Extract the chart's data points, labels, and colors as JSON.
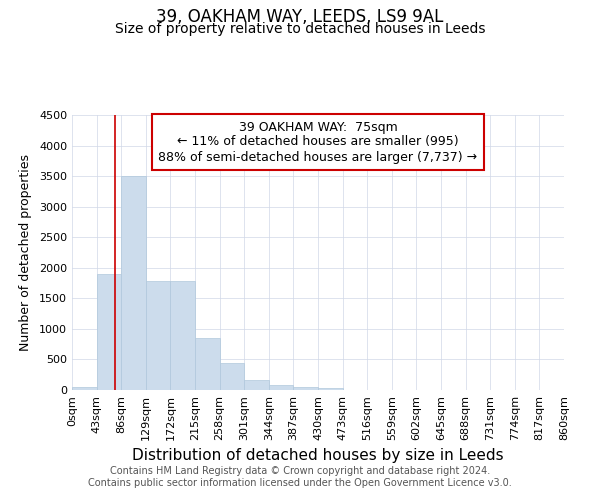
{
  "title": "39, OAKHAM WAY, LEEDS, LS9 9AL",
  "subtitle": "Size of property relative to detached houses in Leeds",
  "xlabel": "Distribution of detached houses by size in Leeds",
  "ylabel": "Number of detached properties",
  "bin_edges": [
    0,
    43,
    86,
    129,
    172,
    215,
    258,
    301,
    344,
    387,
    430,
    473,
    516,
    559,
    602,
    645,
    688,
    731,
    774,
    817,
    860
  ],
  "bin_labels": [
    "0sqm",
    "43sqm",
    "86sqm",
    "129sqm",
    "172sqm",
    "215sqm",
    "258sqm",
    "301sqm",
    "344sqm",
    "387sqm",
    "430sqm",
    "473sqm",
    "516sqm",
    "559sqm",
    "602sqm",
    "645sqm",
    "688sqm",
    "731sqm",
    "774sqm",
    "817sqm",
    "860sqm"
  ],
  "counts": [
    55,
    1900,
    3500,
    1780,
    1780,
    850,
    450,
    170,
    90,
    55,
    30,
    5,
    0,
    0,
    0,
    0,
    0,
    0,
    0,
    0
  ],
  "bar_color": "#ccdcec",
  "bar_edge_color": "#b0c8dc",
  "grid_color": "#d0d8e8",
  "property_size": 75,
  "red_line_color": "#cc0000",
  "annotation_text": "39 OAKHAM WAY:  75sqm\n← 11% of detached houses are smaller (995)\n88% of semi-detached houses are larger (7,737) →",
  "annotation_box_color": "#ffffff",
  "annotation_box_edge_color": "#cc0000",
  "ylim": [
    0,
    4500
  ],
  "footnote1": "Contains HM Land Registry data © Crown copyright and database right 2024.",
  "footnote2": "Contains public sector information licensed under the Open Government Licence v3.0.",
  "title_fontsize": 12,
  "subtitle_fontsize": 10,
  "xlabel_fontsize": 11,
  "ylabel_fontsize": 9,
  "tick_fontsize": 8,
  "annotation_fontsize": 9,
  "footnote_fontsize": 7
}
